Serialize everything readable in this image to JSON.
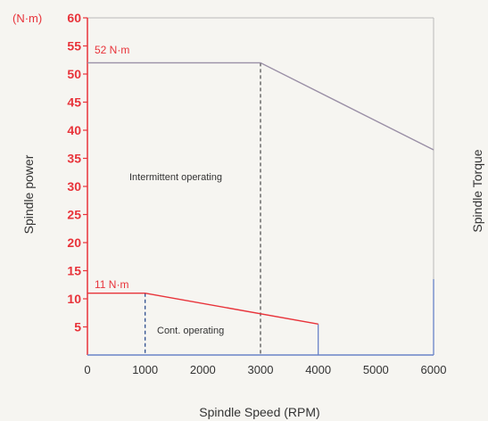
{
  "chart_data": {
    "type": "line",
    "title": "",
    "xlabel": "Spindle Speed (RPM)",
    "ylabel_left": "Spindle power",
    "ylabel_right": "Spindle Torque",
    "y_unit": "(N·m)",
    "xlim": [
      0,
      6000
    ],
    "ylim": [
      0,
      60
    ],
    "x_ticks": [
      "0",
      "1000",
      "2000",
      "3000",
      "4000",
      "5000",
      "6000"
    ],
    "y_ticks": [
      "5",
      "10",
      "15",
      "20",
      "25",
      "30",
      "35",
      "40",
      "45",
      "50",
      "55",
      "60"
    ],
    "series": [
      {
        "points": [
          [
            0,
            52
          ],
          [
            3000,
            52
          ],
          [
            6000,
            36.5
          ]
        ],
        "color": "#9a8fa6"
      },
      {
        "points": [
          [
            0,
            11
          ],
          [
            1000,
            11
          ],
          [
            4000,
            5.5
          ]
        ],
        "color": "#e8333a"
      }
    ],
    "guides": [
      {
        "x": 1000,
        "y": 11,
        "style": "dashed",
        "color": "#2f4f8f"
      },
      {
        "x": 3000,
        "y": 52,
        "style": "dashed",
        "color": "#555555"
      },
      {
        "x": 4000,
        "y": 5.5,
        "style": "solid",
        "color": "#6a83c7"
      },
      {
        "x": 6000,
        "y": 13.5,
        "style": "solid",
        "color": "#6a83c7"
      }
    ],
    "annotations": {
      "peak_torque": "52 N·m",
      "cont_torque": "11 N·m",
      "intermittent": "Intermittent operating",
      "continuous": "Cont. operating"
    },
    "axis_color": "#e8333a",
    "grid": false
  }
}
